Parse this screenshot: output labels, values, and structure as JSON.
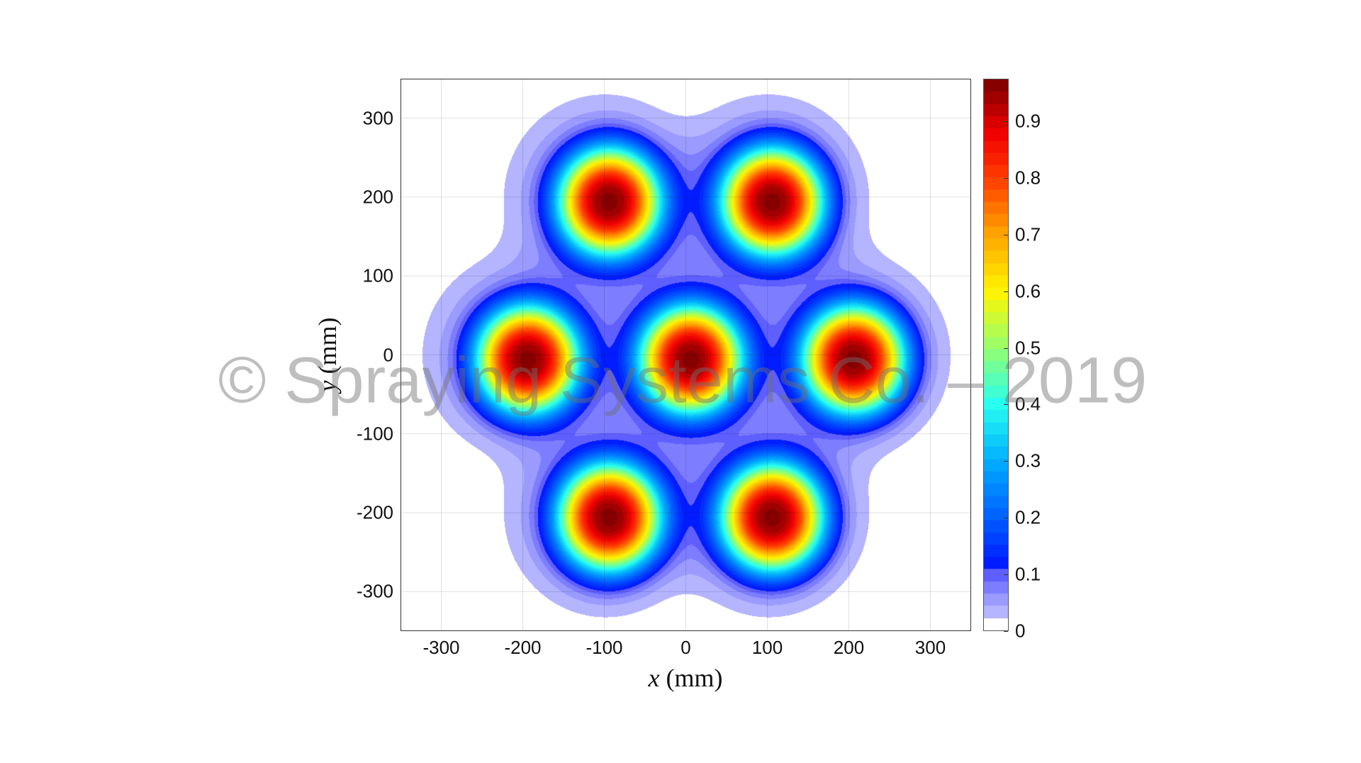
{
  "chart_data": {
    "type": "heatmap",
    "style": "filled-contour",
    "colormap": "jet",
    "xlabel_var": "x",
    "xlabel_unit": "(mm)",
    "ylabel_var": "y",
    "ylabel_unit": "(mm)",
    "xlim": [
      -350,
      350
    ],
    "ylim": [
      -350,
      350
    ],
    "x_ticks": [
      "-300",
      "-200",
      "-100",
      "0",
      "100",
      "200",
      "300"
    ],
    "y_ticks": [
      "300",
      "200",
      "100",
      "0",
      "-100",
      "-200",
      "-300"
    ],
    "grid": true,
    "colorbar": {
      "range": [
        0,
        0.975
      ],
      "ticks": [
        "0",
        "0.1",
        "0.2",
        "0.3",
        "0.4",
        "0.5",
        "0.6",
        "0.7",
        "0.8",
        "0.9"
      ],
      "placement": "right"
    },
    "peaks": [
      {
        "x": -100,
        "y": 200,
        "value": 0.97
      },
      {
        "x": 100,
        "y": 200,
        "value": 0.97
      },
      {
        "x": -200,
        "y": 0,
        "value": 0.97
      },
      {
        "x": 0,
        "y": 0,
        "value": 0.97
      },
      {
        "x": 200,
        "y": 0,
        "value": 0.97
      },
      {
        "x": -100,
        "y": -200,
        "value": 0.97
      },
      {
        "x": 100,
        "y": -200,
        "value": 0.97
      }
    ]
  },
  "watermark": "© Spraying Systems Co. – 2019"
}
